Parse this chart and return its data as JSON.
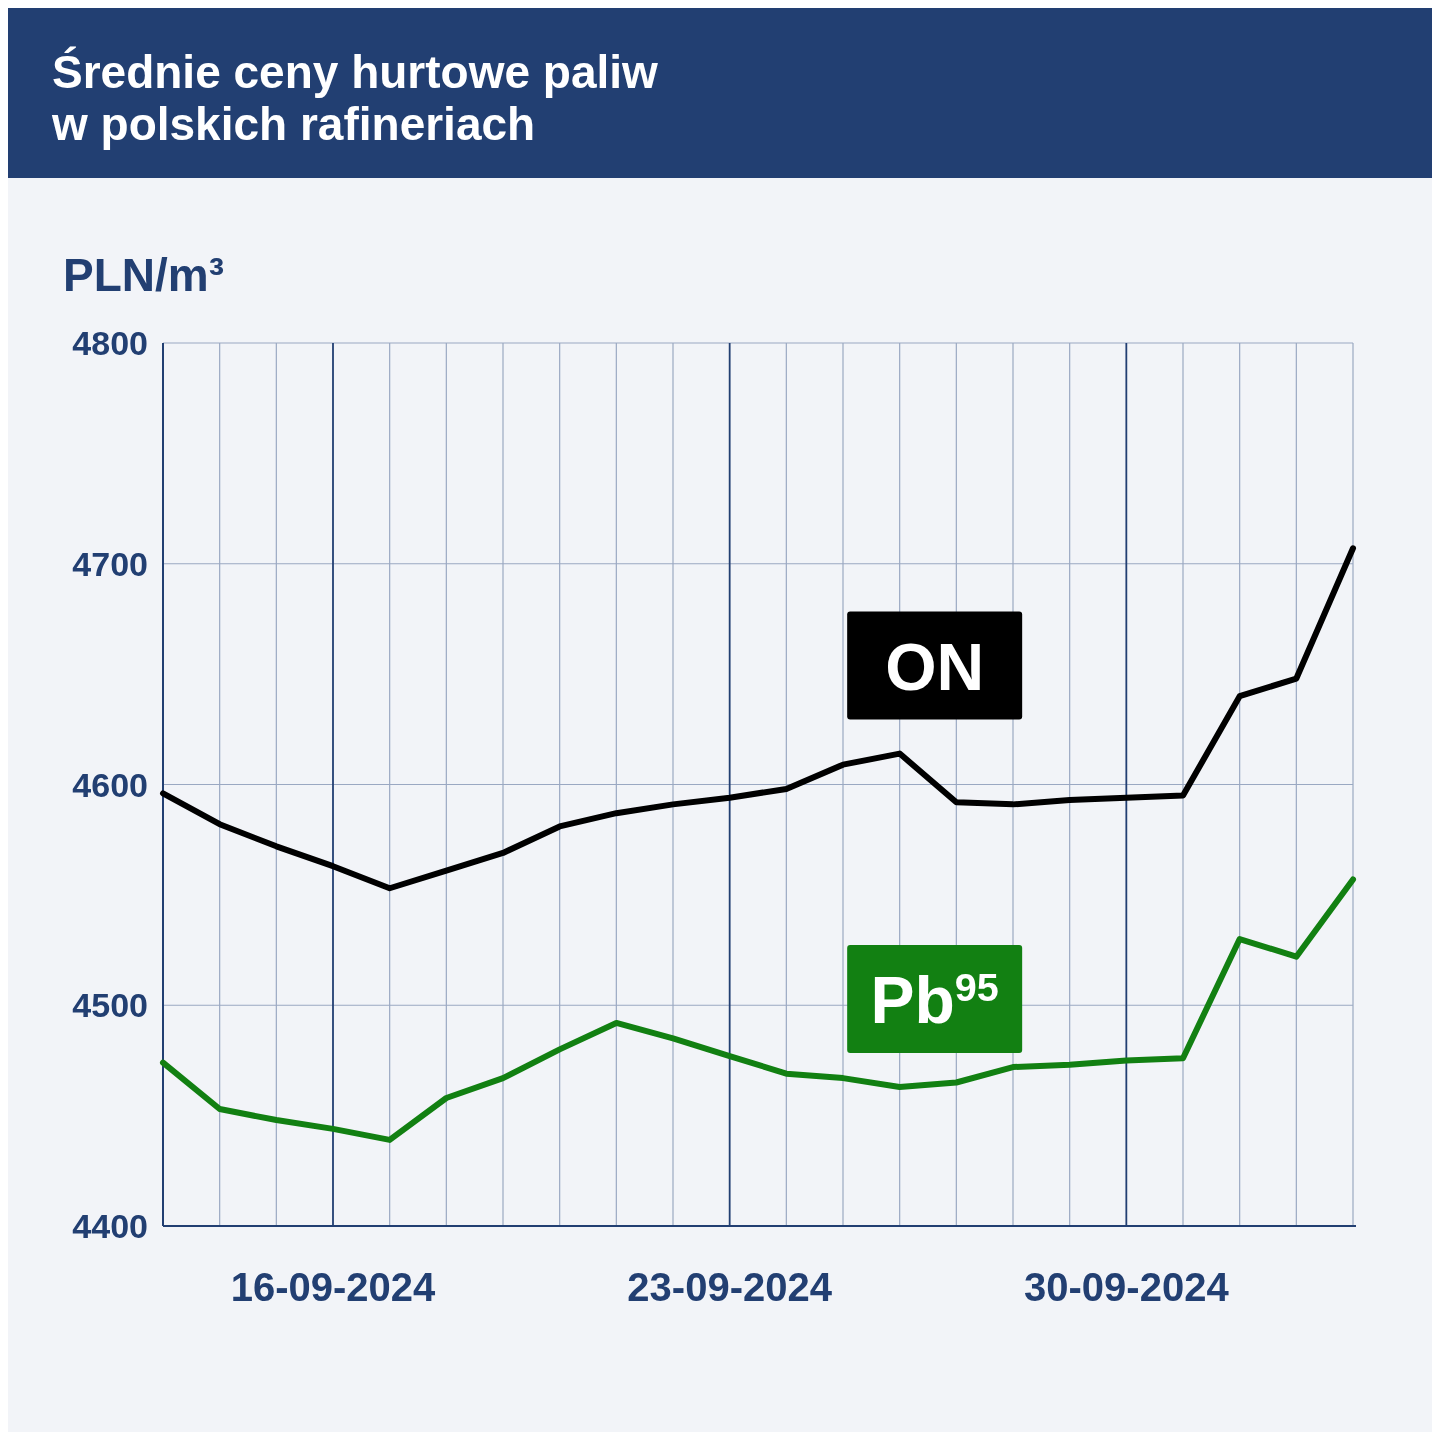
{
  "chart_data": {
    "type": "line",
    "title": "Średnie ceny hurtowe paliw w polskich rafineriach",
    "ylabel": "PLN/m³",
    "x": [
      "2024-09-13",
      "2024-09-14",
      "2024-09-15",
      "2024-09-16",
      "2024-09-17",
      "2024-09-18",
      "2024-09-19",
      "2024-09-20",
      "2024-09-21",
      "2024-09-22",
      "2024-09-23",
      "2024-09-24",
      "2024-09-25",
      "2024-09-26",
      "2024-09-27",
      "2024-09-28",
      "2024-09-29",
      "2024-09-30",
      "2024-10-01",
      "2024-10-02",
      "2024-10-03",
      "2024-10-04"
    ],
    "series": [
      {
        "name": "ON",
        "color": "#000000",
        "values": [
          4596,
          4582,
          4572,
          4563,
          4553,
          4561,
          4569,
          4581,
          4587,
          4591,
          4594,
          4598,
          4609,
          4614,
          4592,
          4591,
          4593,
          4594,
          4595,
          4640,
          4648,
          4707
        ]
      },
      {
        "name": "Pb$^{95}$",
        "color": "#128012",
        "values": [
          4474,
          4453,
          4448,
          4444,
          4439,
          4458,
          4467,
          4480,
          4492,
          4485,
          4477,
          4469,
          4467,
          4463,
          4465,
          4472,
          4473,
          4475,
          4476,
          4530,
          4522,
          4557
        ]
      }
    ],
    "xlim": [
      "2024-09-13",
      "2024-10-04"
    ],
    "xticks": [
      {
        "value": "2024-09-13",
        "label": null
      },
      {
        "value": "2024-09-14",
        "label": null
      },
      {
        "value": "2024-09-15",
        "label": null
      },
      {
        "value": "2024-09-16",
        "label": "16-09-2024"
      },
      {
        "value": "2024-09-17",
        "label": null
      },
      {
        "value": "2024-09-18",
        "label": null
      },
      {
        "value": "2024-09-19",
        "label": null
      },
      {
        "value": "2024-09-20",
        "label": null
      },
      {
        "value": "2024-09-21",
        "label": null
      },
      {
        "value": "2024-09-22",
        "label": null
      },
      {
        "value": "2024-09-23",
        "label": "23-09-2024"
      },
      {
        "value": "2024-09-24",
        "label": null
      },
      {
        "value": "2024-09-25",
        "label": null
      },
      {
        "value": "2024-09-26",
        "label": null
      },
      {
        "value": "2024-09-27",
        "label": null
      },
      {
        "value": "2024-09-28",
        "label": null
      },
      {
        "value": "2024-09-29",
        "label": null
      },
      {
        "value": "2024-09-30",
        "label": "30-09-2024"
      },
      {
        "value": "2024-10-01",
        "label": null
      },
      {
        "value": "2024-10-02",
        "label": null
      },
      {
        "value": "2024-10-03",
        "label": null
      },
      {
        "value": "2024-10-04",
        "label": null
      }
    ],
    "ylim": [
      4400,
      4800
    ],
    "yticks": [
      4400,
      4500,
      4600,
      4700,
      4800
    ],
    "grid": true,
    "legend": false,
    "marker": "none",
    "line_style": "solid"
  }
}
